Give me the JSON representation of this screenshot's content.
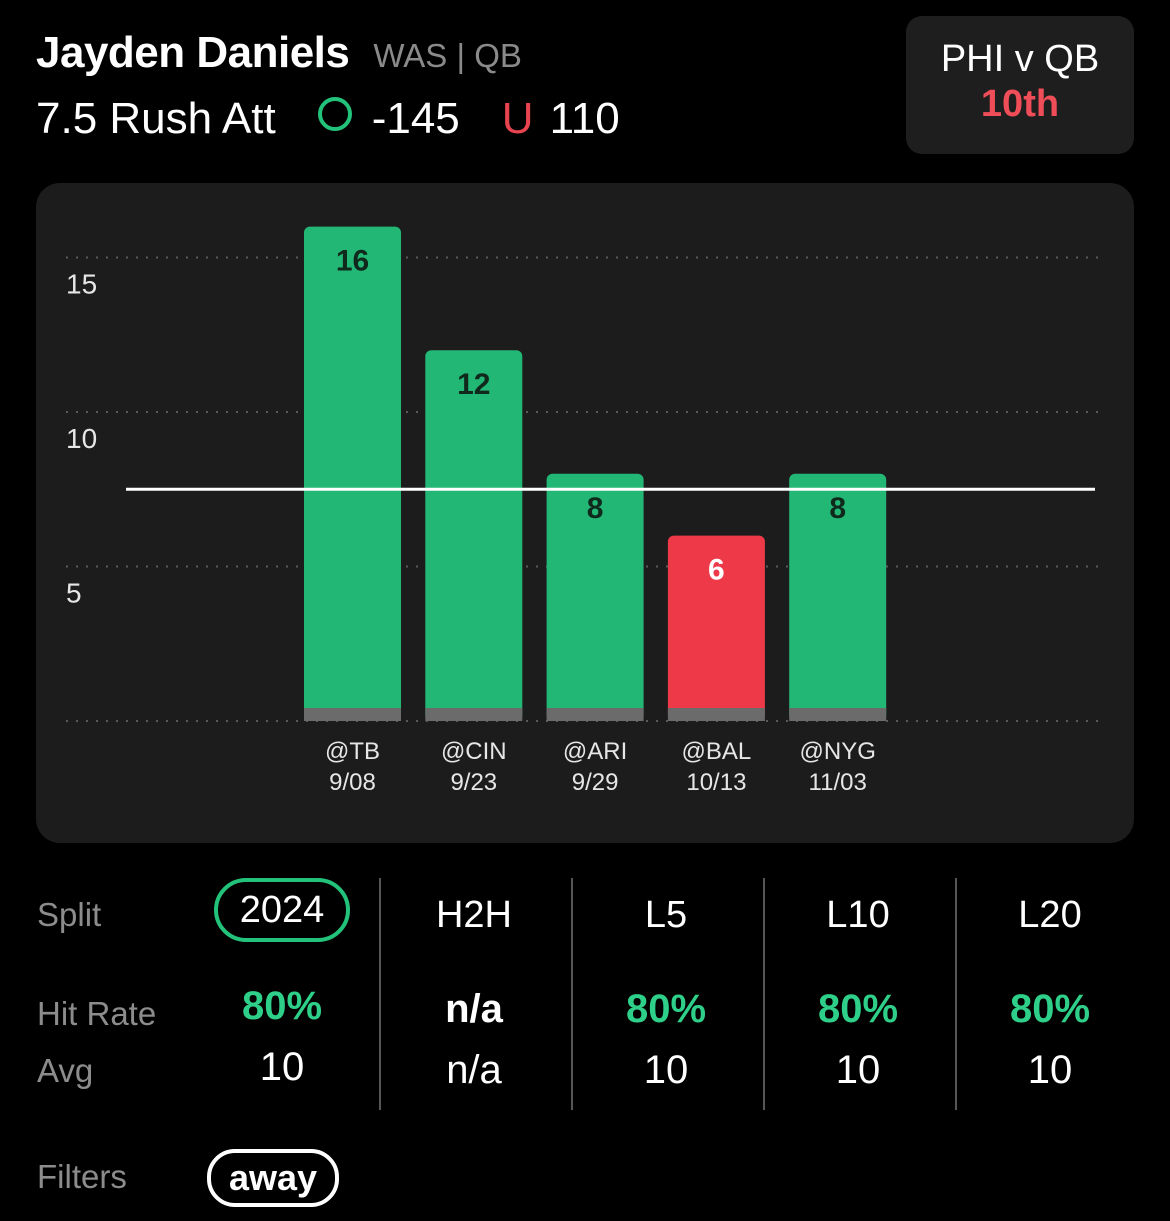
{
  "player": {
    "name": "Jayden Daniels",
    "team_pos": "WAS | QB"
  },
  "prop": {
    "line": "7.5 Rush Att",
    "over_odds": "-145",
    "under_marker": "U",
    "under_odds": "110"
  },
  "matchup": {
    "label": "PHI v QB",
    "rank": "10th"
  },
  "colors": {
    "over": "#23b776",
    "under": "#ee3a48",
    "accent": "#23c27a"
  },
  "chart_data": {
    "type": "bar",
    "categories": [
      "@TB 9/08",
      "@CIN 9/23",
      "@ARI 9/29",
      "@BAL 10/13",
      "@NYG 11/03"
    ],
    "opponents": [
      "@TB",
      "@CIN",
      "@ARI",
      "@BAL",
      "@NYG"
    ],
    "dates": [
      "9/08",
      "9/23",
      "9/29",
      "10/13",
      "11/03"
    ],
    "values": [
      16,
      12,
      8,
      6,
      8
    ],
    "results": [
      "over",
      "over",
      "over",
      "under",
      "over"
    ],
    "line_value": 7.5,
    "yticks": [
      5,
      10,
      15
    ],
    "ylim": [
      0,
      18
    ],
    "grid": true
  },
  "splits": {
    "split_label": "Split",
    "hit_rate_label": "Hit Rate",
    "avg_label": "Avg",
    "columns": [
      {
        "name": "2024",
        "hit_rate": "80%",
        "avg": "10"
      },
      {
        "name": "H2H",
        "hit_rate": "n/a",
        "avg": "n/a"
      },
      {
        "name": "L5",
        "hit_rate": "80%",
        "avg": "10"
      },
      {
        "name": "L10",
        "hit_rate": "80%",
        "avg": "10"
      },
      {
        "name": "L20",
        "hit_rate": "80%",
        "avg": "10"
      }
    ]
  },
  "filters": {
    "label": "Filters",
    "chip": "away"
  }
}
